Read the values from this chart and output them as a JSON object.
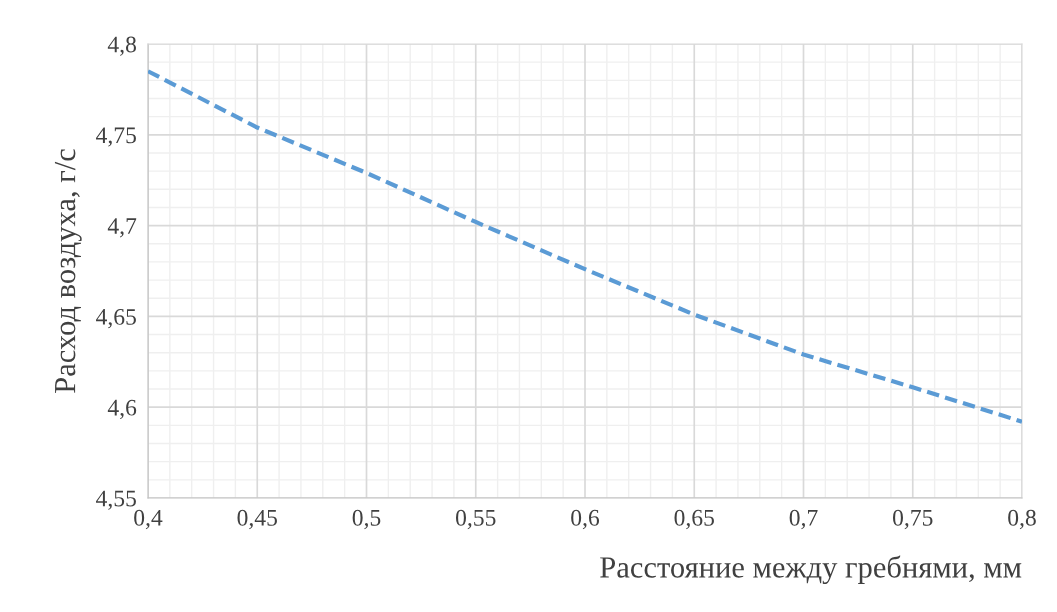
{
  "chart_data": {
    "type": "line",
    "xlabel": "Расстояние между гребнями, мм",
    "ylabel": "Расход воздуха, г/с",
    "x": [
      0.4,
      0.45,
      0.5,
      0.55,
      0.6,
      0.65,
      0.7,
      0.75,
      0.8
    ],
    "series": [
      {
        "color": "#5b9bd5",
        "values": [
          4.785,
          4.754,
          4.729,
          4.702,
          4.676,
          4.651,
          4.629,
          4.611,
          4.592
        ]
      }
    ],
    "xlim": [
      0.4,
      0.8
    ],
    "ylim": [
      4.55,
      4.8
    ],
    "xticks": [
      {
        "value": 0.4,
        "label": "0,4"
      },
      {
        "value": 0.45,
        "label": "0,45"
      },
      {
        "value": 0.5,
        "label": "0,5"
      },
      {
        "value": 0.55,
        "label": "0,55"
      },
      {
        "value": 0.6,
        "label": "0,6"
      },
      {
        "value": 0.65,
        "label": "0,65"
      },
      {
        "value": 0.7,
        "label": "0,7"
      },
      {
        "value": 0.75,
        "label": "0,75"
      },
      {
        "value": 0.8,
        "label": "0,8"
      }
    ],
    "yticks": [
      {
        "value": 4.55,
        "label": "4,55"
      },
      {
        "value": 4.6,
        "label": "4,6"
      },
      {
        "value": 4.65,
        "label": "4,65"
      },
      {
        "value": 4.7,
        "label": "4,7"
      },
      {
        "value": 4.75,
        "label": "4,75"
      },
      {
        "value": 4.8,
        "label": "4,8"
      }
    ],
    "grid": true,
    "line_style": "dashed",
    "marker": "none",
    "legend": false
  }
}
